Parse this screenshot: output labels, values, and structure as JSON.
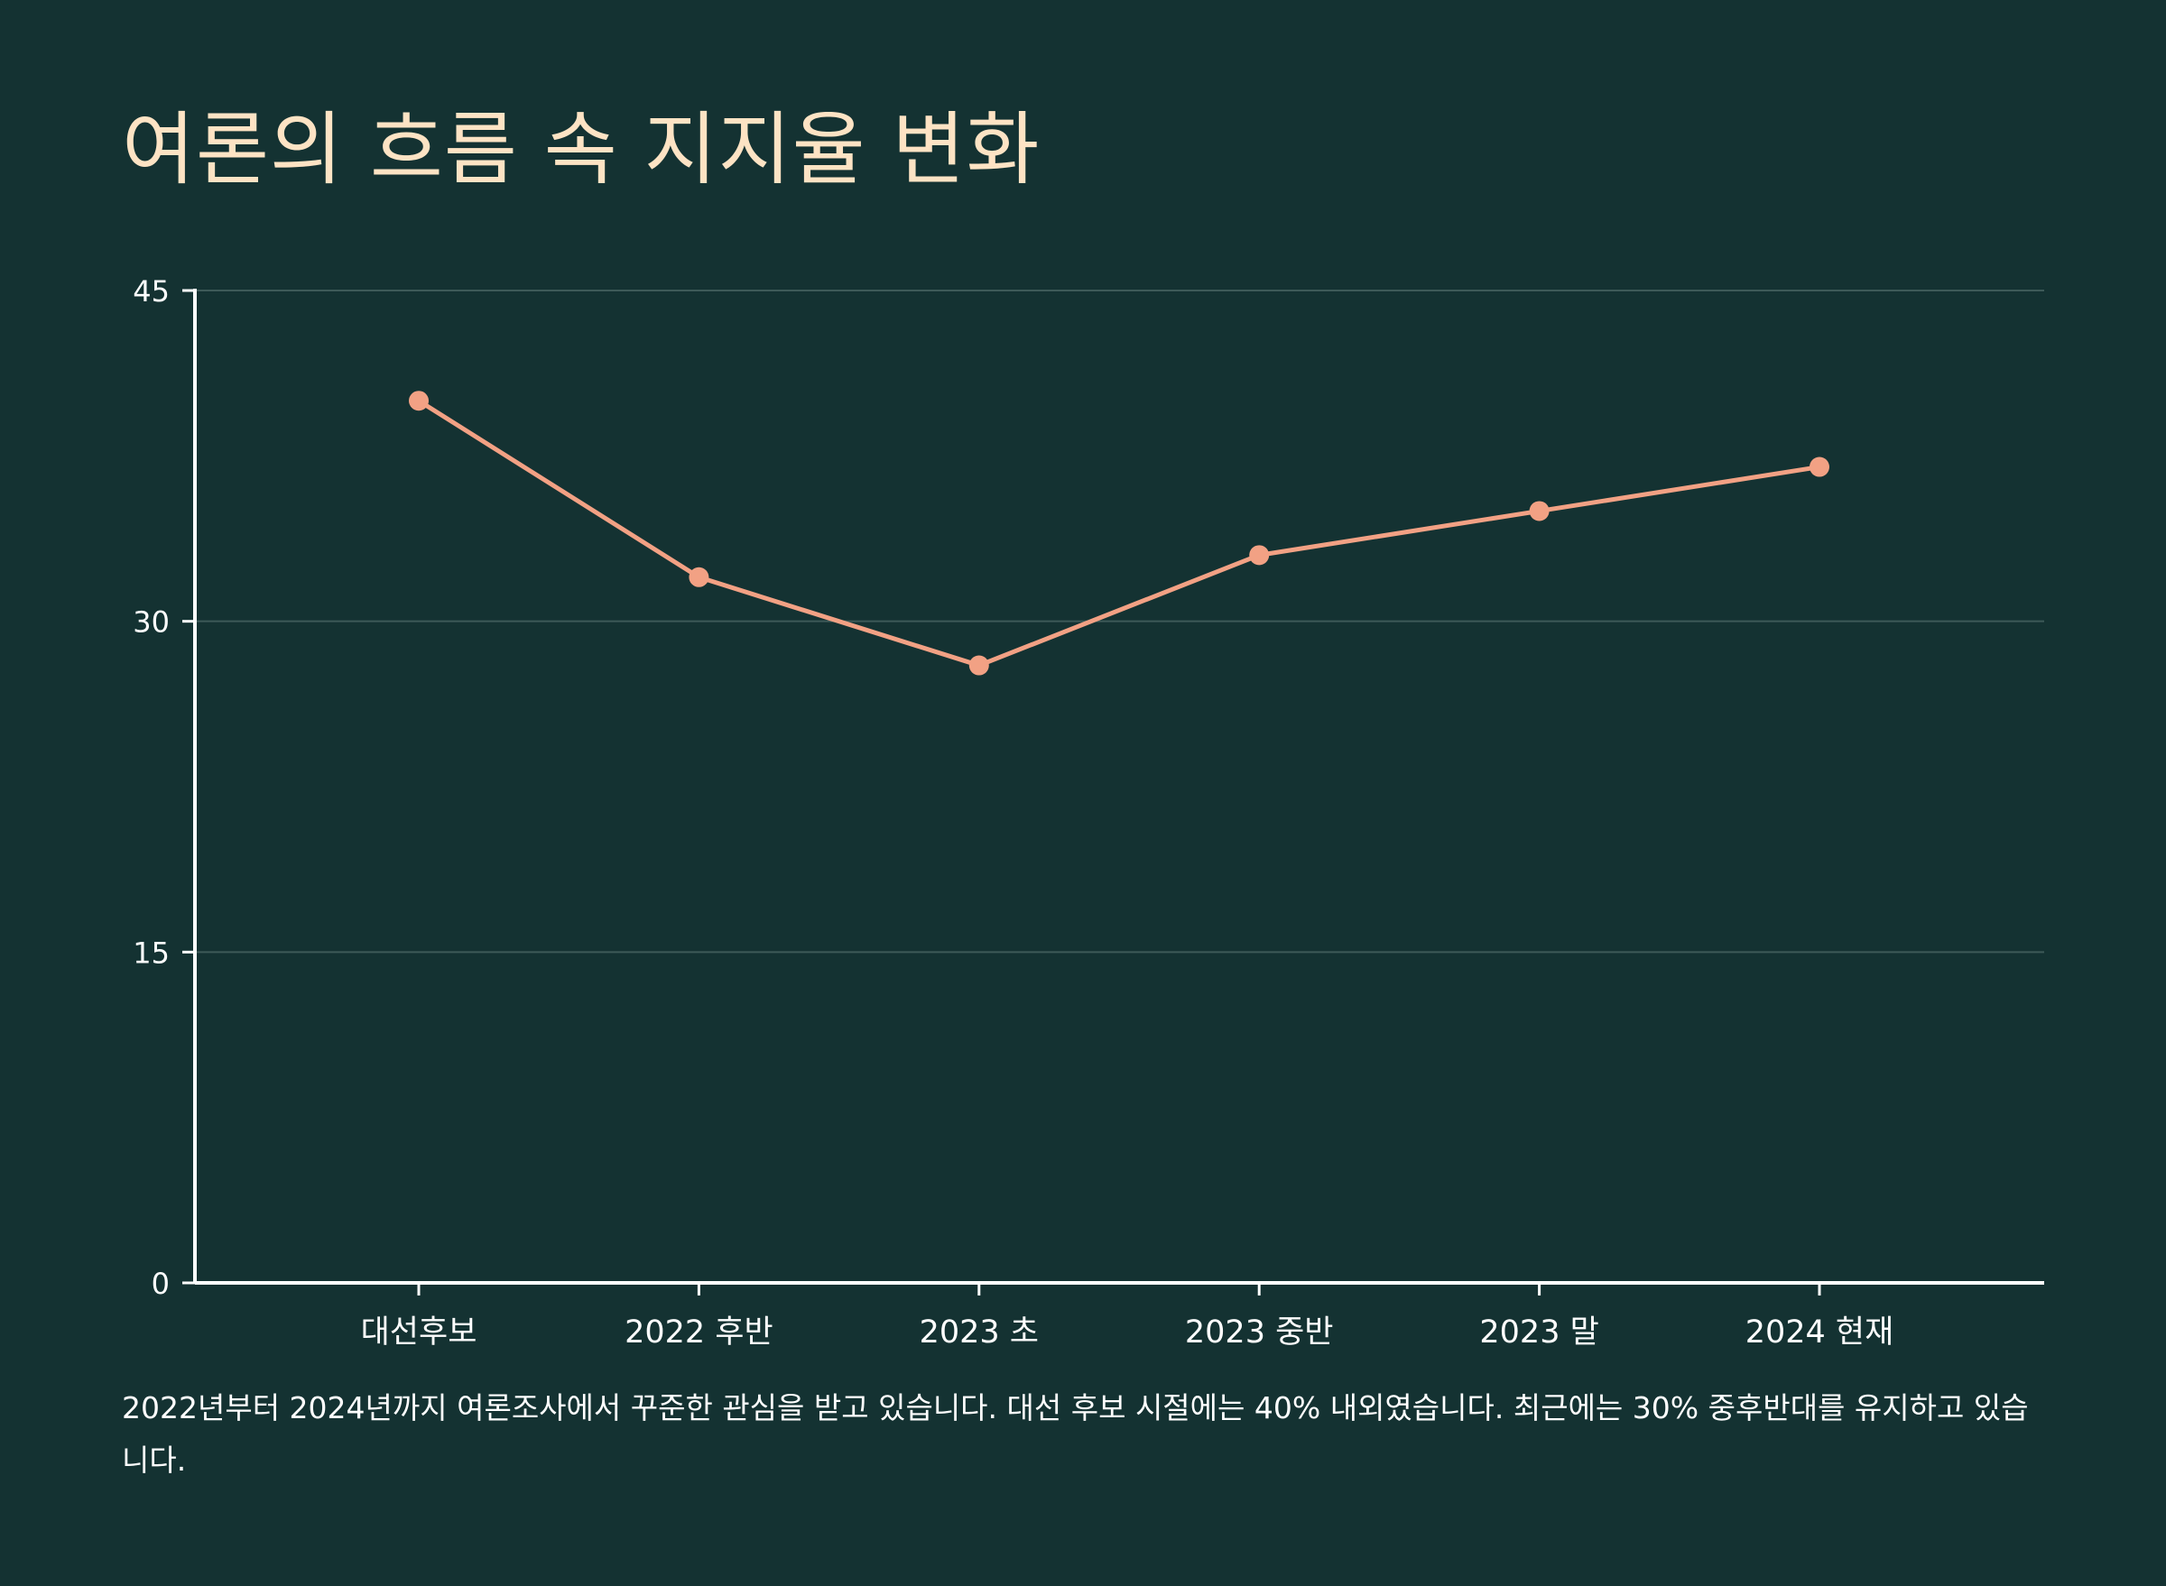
{
  "title": "여론의 흐름 속 지지율 변화",
  "caption": "2022년부터 2024년까지 여론조사에서 꾸준한 관심을 받고 있습니다. 대선 후보 시절에는 40% 내외였습니다. 최근에는 30% 중후반대를 유지하고 있습니다.",
  "colors": {
    "background": "#143232",
    "title": "#fde3c4",
    "line": "#f2a184",
    "axis": "#ffffff",
    "grid": "#3d5a58"
  },
  "chart_data": {
    "type": "line",
    "title": "여론의 흐름 속 지지율 변화",
    "xlabel": "",
    "ylabel": "",
    "categories": [
      "대선후보",
      "2022 후반",
      "2023 초",
      "2023 중반",
      "2023 말",
      "2024 현재"
    ],
    "series": [
      {
        "values": [
          40,
          32,
          28,
          33,
          35,
          37
        ]
      }
    ],
    "ylim": [
      0,
      45
    ],
    "yticks": [
      0,
      15,
      30,
      45
    ],
    "ytick_labels": [
      "0",
      "15",
      "30",
      "45"
    ],
    "grid": true,
    "legend": "none"
  }
}
